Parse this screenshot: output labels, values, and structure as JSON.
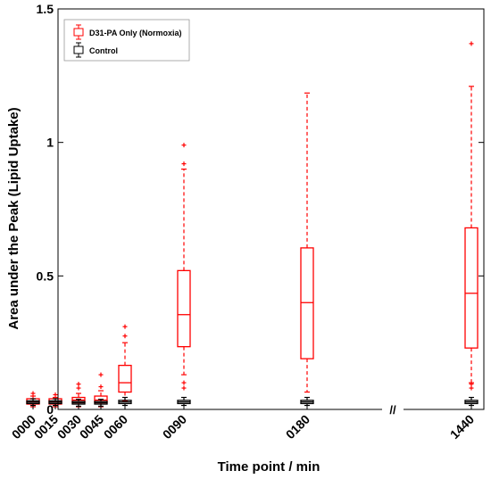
{
  "chart_data": {
    "type": "box",
    "title": "",
    "xlabel": "Time point / min",
    "ylabel": "Area under the Peak (Lipid Uptake)",
    "ylim": [
      0,
      1.5
    ],
    "yticks": [
      0,
      0.5,
      1,
      1.5
    ],
    "ytick_labels": [
      "0",
      "0.5",
      "1",
      "1.5"
    ],
    "categories": [
      "0000",
      "0015",
      "0030",
      "0045",
      "0060",
      "0090",
      "0180",
      "1440"
    ],
    "x_values": [
      0,
      15,
      30,
      45,
      60,
      90,
      180,
      1440
    ],
    "axis_break_marker": "//",
    "grid": false,
    "legend": {
      "position": "top-left",
      "entries": [
        "D31-PA Only (Normoxia)",
        "Control"
      ]
    },
    "colors": {
      "treated": "#ff0000",
      "control": "#000000"
    },
    "series": [
      {
        "name": "D31-PA Only (Normoxia)",
        "color": "#ff0000",
        "boxes": [
          {
            "x": "0000",
            "whisker_low": 0.01,
            "q1": 0.02,
            "median": 0.03,
            "q3": 0.04,
            "whisker_high": 0.05,
            "outliers": [
              0.06
            ]
          },
          {
            "x": "0015",
            "whisker_low": 0.01,
            "q1": 0.02,
            "median": 0.03,
            "q3": 0.04,
            "whisker_high": 0.045,
            "outliers": [
              0.055
            ]
          },
          {
            "x": "0030",
            "whisker_low": 0.01,
            "q1": 0.025,
            "median": 0.035,
            "q3": 0.045,
            "whisker_high": 0.06,
            "outliers": [
              0.08,
              0.095
            ]
          },
          {
            "x": "0045",
            "whisker_low": 0.01,
            "q1": 0.025,
            "median": 0.035,
            "q3": 0.05,
            "whisker_high": 0.07,
            "outliers": [
              0.085,
              0.13
            ]
          },
          {
            "x": "0060",
            "whisker_low": 0.03,
            "q1": 0.065,
            "median": 0.1,
            "q3": 0.165,
            "whisker_high": 0.25,
            "outliers": [
              0.275,
              0.31
            ]
          },
          {
            "x": "0090",
            "whisker_low": 0.13,
            "q1": 0.235,
            "median": 0.355,
            "q3": 0.52,
            "whisker_high": 0.9,
            "outliers": [
              0.92,
              0.99,
              0.1,
              0.08
            ]
          },
          {
            "x": "0180",
            "whisker_low": 0.065,
            "q1": 0.19,
            "median": 0.4,
            "q3": 0.605,
            "whisker_high": 1.185,
            "outliers": []
          },
          {
            "x": "1440",
            "whisker_low": 0.1,
            "q1": 0.23,
            "median": 0.435,
            "q3": 0.68,
            "whisker_high": 1.21,
            "outliers": [
              1.37,
              0.095,
              0.08
            ]
          }
        ]
      },
      {
        "name": "Control",
        "color": "#000000",
        "boxes": [
          {
            "x": "0000",
            "whisker_low": 0.015,
            "q1": 0.022,
            "median": 0.027,
            "q3": 0.032,
            "whisker_high": 0.04,
            "outliers": []
          },
          {
            "x": "0015",
            "whisker_low": 0.015,
            "q1": 0.022,
            "median": 0.027,
            "q3": 0.032,
            "whisker_high": 0.04,
            "outliers": []
          },
          {
            "x": "0030",
            "whisker_low": 0.012,
            "q1": 0.02,
            "median": 0.025,
            "q3": 0.03,
            "whisker_high": 0.038,
            "outliers": []
          },
          {
            "x": "0045",
            "whisker_low": 0.012,
            "q1": 0.02,
            "median": 0.025,
            "q3": 0.03,
            "whisker_high": 0.038,
            "outliers": []
          },
          {
            "x": "0060",
            "whisker_low": 0.015,
            "q1": 0.022,
            "median": 0.028,
            "q3": 0.034,
            "whisker_high": 0.045,
            "outliers": []
          },
          {
            "x": "0090",
            "whisker_low": 0.015,
            "q1": 0.022,
            "median": 0.028,
            "q3": 0.034,
            "whisker_high": 0.045,
            "outliers": []
          },
          {
            "x": "0180",
            "whisker_low": 0.015,
            "q1": 0.022,
            "median": 0.028,
            "q3": 0.034,
            "whisker_high": 0.045,
            "outliers": []
          },
          {
            "x": "1440",
            "whisker_low": 0.015,
            "q1": 0.022,
            "median": 0.028,
            "q3": 0.034,
            "whisker_high": 0.045,
            "outliers": []
          }
        ]
      }
    ]
  }
}
